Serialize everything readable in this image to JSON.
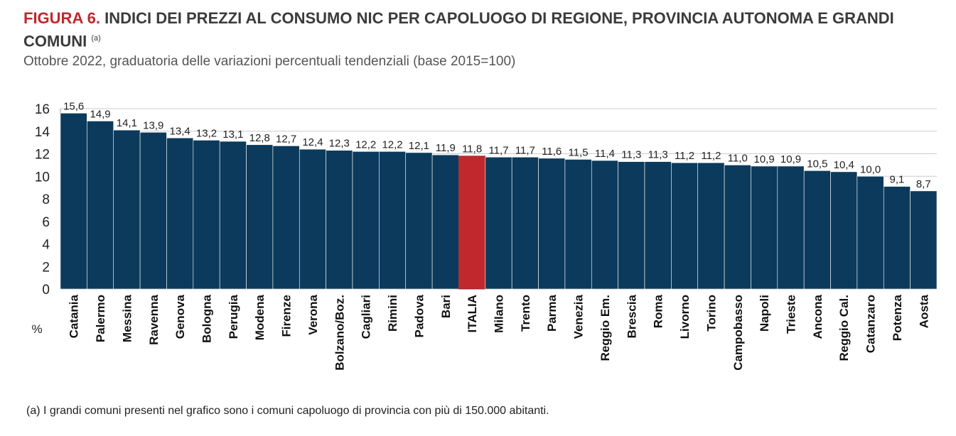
{
  "header": {
    "fig_label": "FIGURA 6.",
    "title": "INDICI DEI PREZZI AL CONSUMO NIC PER CAPOLUOGO DI REGIONE, PROVINCIA AUTONOMA E GRANDI COMUNI",
    "note_marker": "(a)",
    "subtitle": "Ottobre 2022, graduatoria delle variazioni percentuali tendenziali (base 2015=100)"
  },
  "footnote": "(a)  I grandi comuni presenti nel grafico sono i comuni capoluogo di provincia con più di 150.000 abitanti.",
  "colors": {
    "bar": "#0b3a5c",
    "highlight": "#c0282d",
    "grid": "#cccccc"
  },
  "chart_data": {
    "type": "bar",
    "unit_label": "%",
    "categories": [
      "Catania",
      "Palermo",
      "Messina",
      "Ravenna",
      "Genova",
      "Bologna",
      "Perugia",
      "Modena",
      "Firenze",
      "Verona",
      "Bolzano/Boz.",
      "Cagliari",
      "Rimini",
      "Padova",
      "Bari",
      "ITALIA",
      "Milano",
      "Trento",
      "Parma",
      "Venezia",
      "Reggio Em.",
      "Brescia",
      "Roma",
      "Livorno",
      "Torino",
      "Campobasso",
      "Napoli",
      "Trieste",
      "Ancona",
      "Reggio Cal.",
      "Catanzaro",
      "Potenza",
      "Aosta"
    ],
    "values": [
      15.6,
      14.9,
      14.1,
      13.9,
      13.4,
      13.2,
      13.1,
      12.8,
      12.7,
      12.4,
      12.3,
      12.2,
      12.2,
      12.1,
      11.9,
      11.8,
      11.7,
      11.7,
      11.6,
      11.5,
      11.4,
      11.3,
      11.3,
      11.2,
      11.2,
      11.0,
      10.9,
      10.9,
      10.5,
      10.4,
      10.0,
      9.1,
      8.7
    ],
    "value_labels": [
      "15,6",
      "14,9",
      "14,1",
      "13,9",
      "13,4",
      "13,2",
      "13,1",
      "12,8",
      "12,7",
      "12,4",
      "12,3",
      "12,2",
      "12,2",
      "12,1",
      "11,9",
      "11,8",
      "11,7",
      "11,7",
      "11,6",
      "11,5",
      "11,4",
      "11,3",
      "11,3",
      "11,2",
      "11,2",
      "11,0",
      "10,9",
      "10,9",
      "10,5",
      "10,4",
      "10,0",
      "9,1",
      "8,7"
    ],
    "highlight": "ITALIA",
    "ylim": [
      0,
      16
    ],
    "yticks": [
      "0",
      "2",
      "4",
      "6",
      "8",
      "10",
      "12",
      "14",
      "16"
    ],
    "grid": true
  }
}
